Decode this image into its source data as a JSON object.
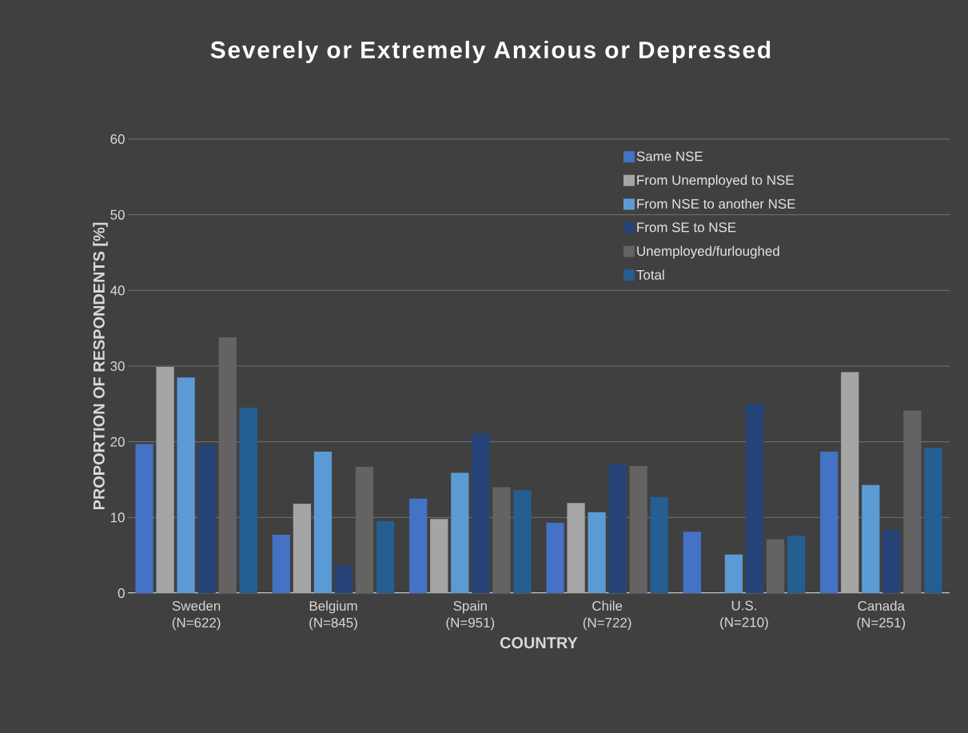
{
  "chart_data": {
    "type": "bar",
    "title": "Severely or Extremely Anxious or Depressed",
    "xlabel": "COUNTRY",
    "ylabel": "PROPORTION OF RESPONDENTS [%]",
    "categories": [
      "Sweden (N=622)",
      "Belgium (N=845)",
      "Spain (N=951)",
      "Chile (N=722)",
      "U.S. (N=210)",
      "Canada (N=251)"
    ],
    "series": [
      {
        "name": "Same NSE",
        "color": "#4472c4",
        "values": [
          19.7,
          7.7,
          12.5,
          9.3,
          8.1,
          18.7
        ]
      },
      {
        "name": "From Unemployed to NSE",
        "color": "#a5a5a5",
        "values": [
          29.9,
          11.8,
          9.8,
          11.9,
          null,
          29.2
        ]
      },
      {
        "name": "From NSE to another NSE",
        "color": "#5b9bd5",
        "values": [
          28.5,
          18.7,
          15.9,
          10.7,
          5.1,
          14.3
        ]
      },
      {
        "name": "From SE to NSE",
        "color": "#264478",
        "values": [
          19.6,
          3.6,
          21.1,
          17.1,
          25.0,
          8.3
        ]
      },
      {
        "name": "Unemployed/furloughed",
        "color": "#636363",
        "values": [
          33.8,
          16.7,
          14.0,
          16.8,
          7.1,
          24.1
        ]
      },
      {
        "name": "Total",
        "color": "#255e91",
        "values": [
          24.5,
          9.5,
          13.6,
          12.7,
          7.6,
          19.2
        ]
      }
    ],
    "ylim": [
      0,
      60
    ],
    "yticks": [
      0,
      10,
      20,
      30,
      40,
      50,
      60
    ],
    "grid": "y",
    "legend": "top right"
  }
}
